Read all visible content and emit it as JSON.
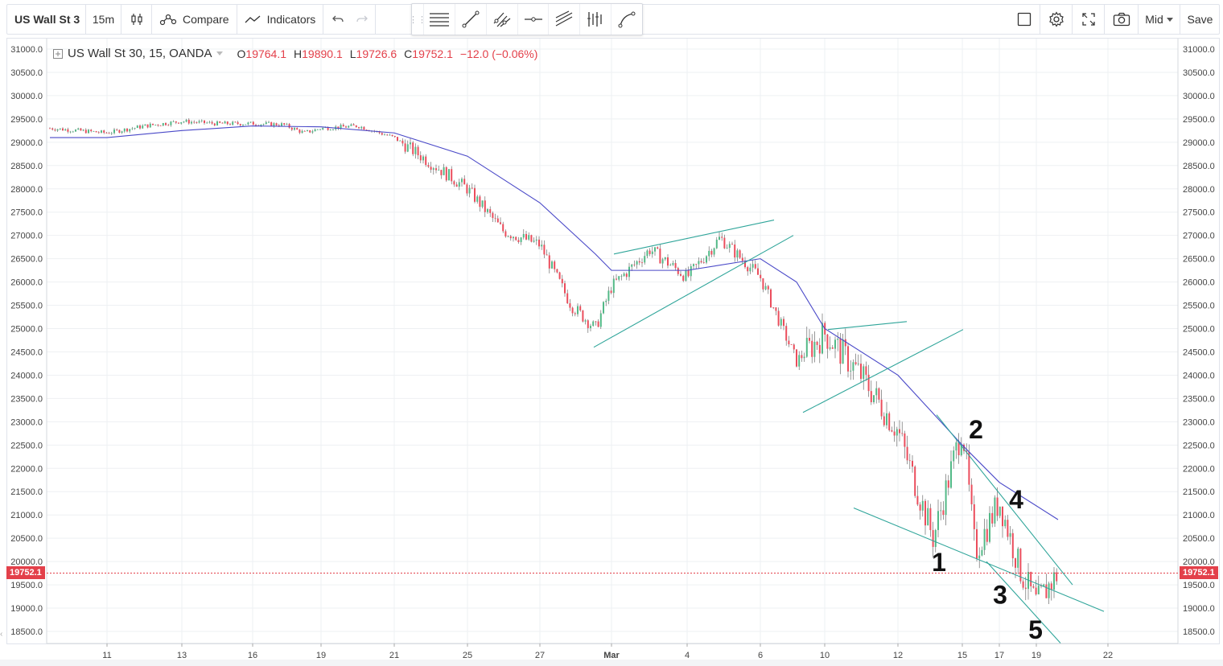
{
  "toolbar": {
    "symbol": "US Wall St 3",
    "interval": "15m",
    "compare_label": "Compare",
    "indicators_label": "Indicators",
    "price_source": "Mid",
    "save_label": "Save"
  },
  "legend": {
    "symbol": "US Wall St 30, 15, OANDA",
    "open_key": "O",
    "open": "19764.1",
    "high_key": "H",
    "high": "19890.1",
    "low_key": "L",
    "low": "19726.6",
    "close_key": "C",
    "close": "19752.1",
    "change": "−12.0 (−0.06%)"
  },
  "last_price_label": "19752.1",
  "colors": {
    "up_candle": "#53b987",
    "down_candle": "#eb4d5c",
    "moving_average": "#4a49c8",
    "trendline": "#2fa59a",
    "price_line": "#e3404a",
    "grid": "#eef0f3"
  },
  "chart_data": {
    "type": "line",
    "symbol": "US Wall St 30",
    "interval": "15",
    "source": "OANDA",
    "y_ticks": [
      "31000.0",
      "30500.0",
      "30000.0",
      "29500.0",
      "29000.0",
      "28500.0",
      "28000.0",
      "27500.0",
      "27000.0",
      "26500.0",
      "26000.0",
      "25500.0",
      "25000.0",
      "24500.0",
      "24000.0",
      "23500.0",
      "23000.0",
      "22500.0",
      "22000.0",
      "21500.0",
      "21000.0",
      "20500.0",
      "20000.0",
      "19500.0",
      "19000.0",
      "18500.0"
    ],
    "x_ticks": [
      "11",
      "13",
      "16",
      "19",
      "21",
      "25",
      "27",
      "Mar",
      "4",
      "6",
      "10",
      "12",
      "15",
      "17",
      "19",
      "22"
    ],
    "ylim": [
      18250,
      31200
    ],
    "last_price": 19752.1,
    "price_path": [
      {
        "x": "11",
        "y": 29200
      },
      {
        "x": "12",
        "y": 29350
      },
      {
        "x": "13",
        "y": 29450
      },
      {
        "x": "14",
        "y": 29400
      },
      {
        "x": "16",
        "y": 29400
      },
      {
        "x": "17",
        "y": 29380
      },
      {
        "x": "18",
        "y": 29200
      },
      {
        "x": "19",
        "y": 29300
      },
      {
        "x": "20",
        "y": 29350
      },
      {
        "x": "21",
        "y": 29100
      },
      {
        "x": "24",
        "y": 28500
      },
      {
        "x": "25",
        "y": 28000
      },
      {
        "x": "26",
        "y": 27100
      },
      {
        "x": "27",
        "y": 26800
      },
      {
        "x": "28",
        "y": 25500
      },
      {
        "x": "29",
        "y": 25000
      },
      {
        "x": "Mar",
        "y": 25900
      },
      {
        "x": "3",
        "y": 26700
      },
      {
        "x": "4",
        "y": 26100
      },
      {
        "x": "5",
        "y": 26950
      },
      {
        "x": "6",
        "y": 26100
      },
      {
        "x": "9",
        "y": 24300
      },
      {
        "x": "10",
        "y": 24900
      },
      {
        "x": "11",
        "y": 24000
      },
      {
        "x": "12",
        "y": 22800
      },
      {
        "x": "13",
        "y": 20500
      },
      {
        "x": "15",
        "y": 22900
      },
      {
        "x": "16",
        "y": 20200
      },
      {
        "x": "17",
        "y": 21300
      },
      {
        "x": "18",
        "y": 19800
      },
      {
        "x": "19",
        "y": 19100
      },
      {
        "x": "20",
        "y": 19750
      }
    ],
    "moving_average": [
      {
        "x": "11",
        "y": 29100
      },
      {
        "x": "13",
        "y": 29250
      },
      {
        "x": "16",
        "y": 29350
      },
      {
        "x": "19",
        "y": 29330
      },
      {
        "x": "21",
        "y": 29200
      },
      {
        "x": "25",
        "y": 28700
      },
      {
        "x": "27",
        "y": 27700
      },
      {
        "x": "29",
        "y": 26600
      },
      {
        "x": "Mar",
        "y": 26250
      },
      {
        "x": "4",
        "y": 26250
      },
      {
        "x": "6",
        "y": 26500
      },
      {
        "x": "9",
        "y": 26000
      },
      {
        "x": "10",
        "y": 25000
      },
      {
        "x": "12",
        "y": 24000
      },
      {
        "x": "15",
        "y": 22500
      },
      {
        "x": "17",
        "y": 21700
      },
      {
        "x": "20",
        "y": 20900
      }
    ],
    "annotations": [
      "1",
      "2",
      "3",
      "4",
      "5"
    ]
  }
}
